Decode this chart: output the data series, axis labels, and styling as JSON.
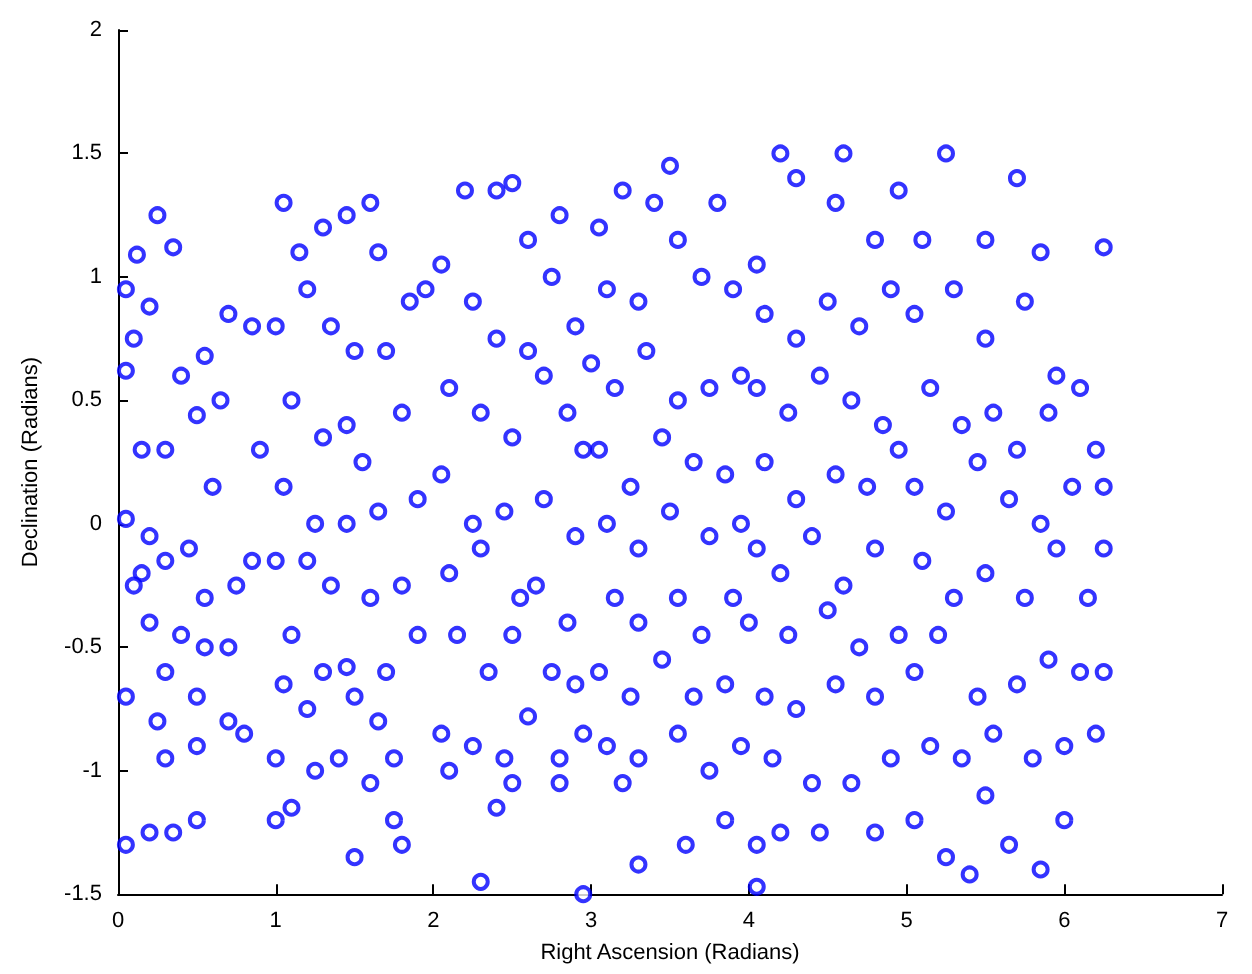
{
  "chart_data": {
    "type": "scatter",
    "xlabel": "Right Ascension (Radians)",
    "ylabel": "Declination (Radians)",
    "marker": "circle",
    "xlim": [
      0,
      7
    ],
    "xticks": [
      0,
      1,
      2,
      3,
      4,
      5,
      6,
      7
    ],
    "ylim": [
      -1.5,
      2
    ],
    "yticks": [
      -1.5,
      -1,
      -0.5,
      0,
      0.5,
      1,
      1.5,
      2
    ],
    "series": [
      {
        "color": "#0000ff",
        "x": [
          0.05,
          0.12,
          0.25,
          0.35,
          0.1,
          0.2,
          0.4,
          0.05,
          0.3,
          0.15,
          0.55,
          0.5,
          0.65,
          0.7,
          0.85,
          0.9,
          0.6,
          0.05,
          0.2,
          0.15,
          0.3,
          0.1,
          0.45,
          0.55,
          0.75,
          0.85,
          0.2,
          0.4,
          0.55,
          0.7,
          0.05,
          0.3,
          0.25,
          0.5,
          0.7,
          0.3,
          0.5,
          0.8,
          0.5,
          0.05,
          0.2,
          0.35,
          1.05,
          1.15,
          1.3,
          1.45,
          1.6,
          1.65,
          1.2,
          1.0,
          1.35,
          1.5,
          1.7,
          1.85,
          1.1,
          1.3,
          1.45,
          1.55,
          1.8,
          1.95,
          1.05,
          1.25,
          1.45,
          1.65,
          1.9,
          1.0,
          1.2,
          1.35,
          1.6,
          1.8,
          1.1,
          1.3,
          1.45,
          1.7,
          1.9,
          1.05,
          1.2,
          1.5,
          1.65,
          1.0,
          1.25,
          1.4,
          1.6,
          1.75,
          1.1,
          1.5,
          1.75,
          1.8,
          1.0,
          2.05,
          2.2,
          2.4,
          2.5,
          2.6,
          2.8,
          2.25,
          2.4,
          2.6,
          2.75,
          2.9,
          2.1,
          2.3,
          2.5,
          2.7,
          2.85,
          2.95,
          2.05,
          2.25,
          2.45,
          2.7,
          2.9,
          2.1,
          2.3,
          2.55,
          2.65,
          2.85,
          2.15,
          2.35,
          2.5,
          2.75,
          2.9,
          2.05,
          2.25,
          2.45,
          2.6,
          2.8,
          2.95,
          2.1,
          2.4,
          2.5,
          2.8,
          2.3,
          2.95,
          3.05,
          3.2,
          3.4,
          3.5,
          3.8,
          3.1,
          3.3,
          3.55,
          3.7,
          3.9,
          3.0,
          3.15,
          3.35,
          3.55,
          3.75,
          3.95,
          3.05,
          3.25,
          3.45,
          3.65,
          3.85,
          3.1,
          3.3,
          3.5,
          3.75,
          3.95,
          3.15,
          3.3,
          3.55,
          3.7,
          3.9,
          3.05,
          3.25,
          3.45,
          3.65,
          3.85,
          3.1,
          3.3,
          3.55,
          3.75,
          3.95,
          3.2,
          3.3,
          3.6,
          3.85,
          4.05,
          4.2,
          4.3,
          4.55,
          4.6,
          4.8,
          4.95,
          4.1,
          4.3,
          4.5,
          4.7,
          4.9,
          4.05,
          4.25,
          4.45,
          4.65,
          4.85,
          4.1,
          4.3,
          4.55,
          4.75,
          4.95,
          4.05,
          4.2,
          4.4,
          4.6,
          4.8,
          4.0,
          4.25,
          4.5,
          4.7,
          4.95,
          4.1,
          4.3,
          4.55,
          4.8,
          4.15,
          4.4,
          4.65,
          4.9,
          4.05,
          4.2,
          4.45,
          4.8,
          4.05,
          5.1,
          5.25,
          5.5,
          5.7,
          5.85,
          5.05,
          5.3,
          5.5,
          5.75,
          5.95,
          6.25,
          5.15,
          5.35,
          5.55,
          5.7,
          5.9,
          6.1,
          6.2,
          5.05,
          5.25,
          5.45,
          5.65,
          5.85,
          6.05,
          6.25,
          5.1,
          5.3,
          5.5,
          5.75,
          5.95,
          6.15,
          6.25,
          5.05,
          5.2,
          5.45,
          5.7,
          5.9,
          6.1,
          6.25,
          5.15,
          5.35,
          5.55,
          5.8,
          6.0,
          6.2,
          5.05,
          5.25,
          5.5,
          5.65,
          5.85,
          6.0,
          5.4
        ],
        "values": [
          0.95,
          1.09,
          1.25,
          1.12,
          0.75,
          0.88,
          0.6,
          0.62,
          0.3,
          0.3,
          0.68,
          0.44,
          0.5,
          0.85,
          0.8,
          0.3,
          0.15,
          0.02,
          -0.05,
          -0.2,
          -0.15,
          -0.25,
          -0.1,
          -0.3,
          -0.25,
          -0.15,
          -0.4,
          -0.45,
          -0.5,
          -0.5,
          -0.7,
          -0.6,
          -0.8,
          -0.7,
          -0.8,
          -0.95,
          -0.9,
          -0.85,
          -1.2,
          -1.3,
          -1.25,
          -1.25,
          1.3,
          1.1,
          1.2,
          1.25,
          1.3,
          1.1,
          0.95,
          0.8,
          0.8,
          0.7,
          0.7,
          0.9,
          0.5,
          0.35,
          0.4,
          0.25,
          0.45,
          0.95,
          0.15,
          0.0,
          0.0,
          0.05,
          0.1,
          -0.15,
          -0.15,
          -0.25,
          -0.3,
          -0.25,
          -0.45,
          -0.6,
          -0.58,
          -0.6,
          -0.45,
          -0.65,
          -0.75,
          -0.7,
          -0.8,
          -0.95,
          -1.0,
          -0.95,
          -1.05,
          -0.95,
          -1.15,
          -1.35,
          -1.2,
          -1.3,
          -1.2,
          1.05,
          1.35,
          1.35,
          1.38,
          1.15,
          1.25,
          0.9,
          0.75,
          0.7,
          1.0,
          0.8,
          0.55,
          0.45,
          0.35,
          0.6,
          0.45,
          0.3,
          0.2,
          0.0,
          0.05,
          0.1,
          -0.05,
          -0.2,
          -0.1,
          -0.3,
          -0.25,
          -0.4,
          -0.45,
          -0.6,
          -0.45,
          -0.6,
          -0.65,
          -0.85,
          -0.9,
          -0.95,
          -0.78,
          -0.95,
          -0.85,
          -1.0,
          -1.15,
          -1.05,
          -1.05,
          -1.45,
          -1.5,
          1.2,
          1.35,
          1.3,
          1.45,
          1.3,
          0.95,
          0.9,
          1.15,
          1.0,
          0.95,
          0.65,
          0.55,
          0.7,
          0.5,
          0.55,
          0.6,
          0.3,
          0.15,
          0.35,
          0.25,
          0.2,
          0.0,
          -0.1,
          0.05,
          -0.05,
          0.0,
          -0.3,
          -0.4,
          -0.3,
          -0.45,
          -0.3,
          -0.6,
          -0.7,
          -0.55,
          -0.7,
          -0.65,
          -0.9,
          -0.95,
          -0.85,
          -1.0,
          -0.9,
          -1.05,
          -1.38,
          -1.3,
          -1.2,
          1.05,
          1.5,
          1.4,
          1.3,
          1.5,
          1.15,
          1.35,
          0.85,
          0.75,
          0.9,
          0.8,
          0.95,
          0.55,
          0.45,
          0.6,
          0.5,
          0.4,
          0.25,
          0.1,
          0.2,
          0.15,
          0.3,
          -0.1,
          -0.2,
          -0.05,
          -0.25,
          -0.1,
          -0.4,
          -0.45,
          -0.35,
          -0.5,
          -0.45,
          -0.7,
          -0.75,
          -0.65,
          -0.7,
          -0.95,
          -1.05,
          -1.05,
          -0.95,
          -1.3,
          -1.25,
          -1.25,
          -1.25,
          -1.47,
          1.15,
          1.5,
          1.15,
          1.4,
          1.1,
          0.85,
          0.95,
          0.75,
          0.9,
          0.6,
          1.12,
          0.55,
          0.4,
          0.45,
          0.3,
          0.45,
          0.55,
          0.3,
          0.15,
          0.05,
          0.25,
          0.1,
          0.0,
          0.15,
          0.15,
          -0.15,
          -0.3,
          -0.2,
          -0.3,
          -0.1,
          -0.3,
          -0.1,
          -0.6,
          -0.45,
          -0.7,
          -0.65,
          -0.55,
          -0.6,
          -0.6,
          -0.9,
          -0.95,
          -0.85,
          -0.95,
          -0.9,
          -0.85,
          -1.2,
          -1.35,
          -1.1,
          -1.3,
          -1.4,
          -1.2,
          -1.42
        ]
      }
    ]
  }
}
